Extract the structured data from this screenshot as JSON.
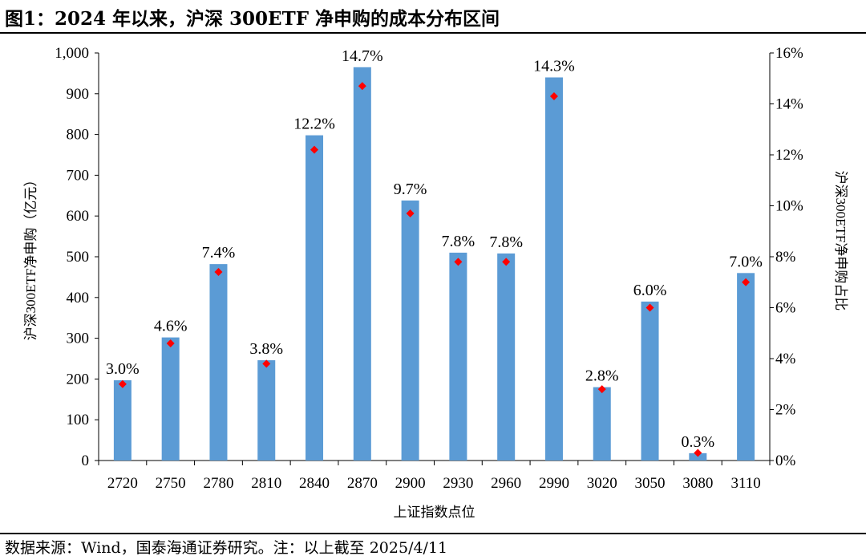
{
  "header": {
    "title": "图1：2024 年以来，沪深 300ETF 净申购的成本分布区间"
  },
  "footer": {
    "source": "数据来源：Wind，国泰海通证券研究。注：以上截至 2025/4/11"
  },
  "chart_data": {
    "type": "bar",
    "categories": [
      "2720",
      "2750",
      "2780",
      "2810",
      "2840",
      "2870",
      "2900",
      "2930",
      "2960",
      "2990",
      "3020",
      "3050",
      "3080",
      "3110"
    ],
    "xlabel": "上证指数点位",
    "ylabel": "沪深300ETF净申购（亿元）",
    "ylabel_right": "沪深300ETF净申购占比",
    "ylim": [
      0,
      1000
    ],
    "y_ticks": [
      "0",
      "100",
      "200",
      "300",
      "400",
      "500",
      "600",
      "700",
      "800",
      "900",
      "1,000"
    ],
    "ylim_right": [
      0,
      16
    ],
    "y_ticks_right": [
      "0%",
      "2%",
      "4%",
      "6%",
      "8%",
      "10%",
      "12%",
      "14%",
      "16%"
    ],
    "grid": false,
    "series": [
      {
        "axis": "left",
        "mark": "bar",
        "color": "#5b9bd5",
        "values": [
          197,
          302,
          482,
          246,
          798,
          965,
          638,
          510,
          508,
          940,
          180,
          390,
          18,
          460
        ]
      },
      {
        "axis": "right",
        "mark": "diamond",
        "color": "#ff0000",
        "values": [
          3.0,
          4.6,
          7.4,
          3.8,
          12.2,
          14.7,
          9.7,
          7.8,
          7.8,
          14.3,
          2.8,
          6.0,
          0.3,
          7.0
        ],
        "labels": [
          "3.0%",
          "4.6%",
          "7.4%",
          "3.8%",
          "12.2%",
          "14.7%",
          "9.7%",
          "7.8%",
          "7.8%",
          "14.3%",
          "2.8%",
          "6.0%",
          "0.3%",
          "7.0%"
        ]
      }
    ]
  }
}
